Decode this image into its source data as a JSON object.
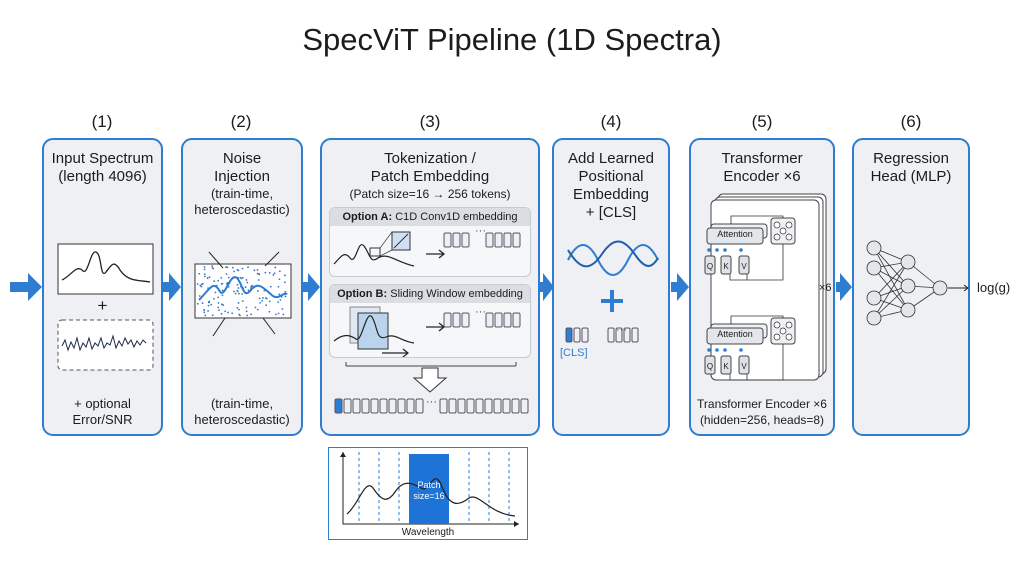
{
  "title": "SpecViT Pipeline (1D Spectra)",
  "steps": [
    {
      "num": "(1)",
      "title": "Input Spectrum\n(length 4096)",
      "plus": "+",
      "caption": "+ optional\nError/SNR"
    },
    {
      "num": "(2)",
      "title": "Noise\nInjection",
      "subtitle": "(train-time,\nheteroscedastic)",
      "caption": "(train-time,\nheteroscedastic)"
    },
    {
      "num": "(3)",
      "title": "Tokenization /\nPatch Embedding",
      "subtitle": "(Patch size=16 → 256 tokens)",
      "option_a_bold": "Option A:",
      "option_a": " C1D Conv1D embedding",
      "option_b_bold": "Option B:",
      "option_b": " Sliding Window embedding",
      "ellipsis": "···"
    },
    {
      "num": "(4)",
      "title": "Add Learned\nPositional\nEmbedding\n+ [CLS]",
      "cls": "[CLS]",
      "ellipsis": "···"
    },
    {
      "num": "(5)",
      "title": "Transformer\nEncoder ×6",
      "attention": "Attention",
      "q": "Q",
      "k": "K",
      "v": "V",
      "repeat": "×6",
      "caption": "Transformer Encoder ×6\n(hidden=256, heads=8)"
    },
    {
      "num": "(6)",
      "title": "Regression\nHead (MLP)",
      "output": "log(g)"
    }
  ],
  "inset": {
    "patch_label": "Patch\nsize=16",
    "xlabel": "Wavelength"
  },
  "colors": {
    "accent": "#2f7dd1",
    "panel_bg": "#eef0f3",
    "dark_accent": "#1f5fae"
  }
}
